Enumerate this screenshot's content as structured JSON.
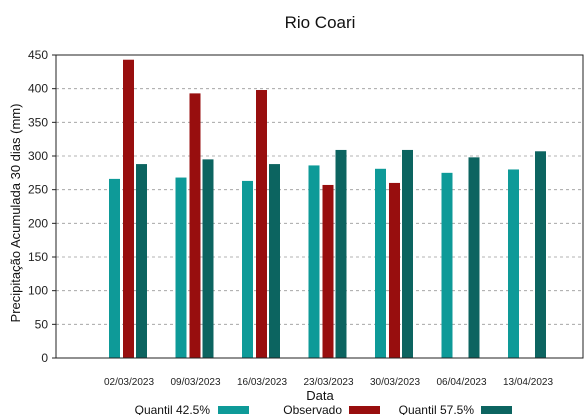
{
  "chart_data": {
    "type": "bar",
    "title": "Rio Coari",
    "xlabel": "Data",
    "ylabel": "Precipitação Acumulada 30 dias (mm)",
    "ylim": [
      0,
      450
    ],
    "yticks": [
      0,
      50,
      100,
      150,
      200,
      250,
      300,
      350,
      400,
      450
    ],
    "grid": "y-dashed",
    "legend_position": "bottom",
    "categories": [
      "02/03/2023",
      "09/03/2023",
      "16/03/2023",
      "23/03/2023",
      "30/03/2023",
      "06/04/2023",
      "13/04/2023"
    ],
    "series": [
      {
        "name": "Quantil 42.5%",
        "color": "#0e9a98",
        "values": [
          266,
          268,
          263,
          286,
          281,
          275,
          280
        ]
      },
      {
        "name": "Observado",
        "color": "#980e0e",
        "values": [
          443,
          393,
          398,
          257,
          260,
          null,
          null
        ]
      },
      {
        "name": "Quantil 57.5%",
        "color": "#0c6460",
        "values": [
          288,
          295,
          288,
          309,
          309,
          298,
          307
        ]
      }
    ]
  }
}
